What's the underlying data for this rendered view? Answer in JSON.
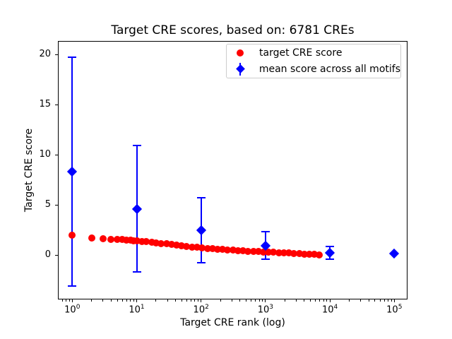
{
  "title": "Target CRE scores, based on: 6781 CREs",
  "axes": {
    "xlabel": "Target CRE rank (log)",
    "ylabel": "Target CRE score",
    "x_ticks": [
      {
        "value": 1,
        "base": "10",
        "exp": "0"
      },
      {
        "value": 10,
        "base": "10",
        "exp": "1"
      },
      {
        "value": 100,
        "base": "10",
        "exp": "2"
      },
      {
        "value": 1000,
        "base": "10",
        "exp": "3"
      },
      {
        "value": 10000,
        "base": "10",
        "exp": "4"
      },
      {
        "value": 100000,
        "base": "10",
        "exp": "5"
      }
    ],
    "y_ticks": [
      {
        "value": 0,
        "label": "0"
      },
      {
        "value": 5,
        "label": "5"
      },
      {
        "value": 10,
        "label": "10"
      },
      {
        "value": 15,
        "label": "15"
      },
      {
        "value": 20,
        "label": "20"
      }
    ]
  },
  "legend": {
    "items": [
      {
        "label": "target CRE score",
        "marker": "circle",
        "color": "#ff0000"
      },
      {
        "label": "mean score across all motifs",
        "marker": "diamond",
        "color": "#0000ff"
      }
    ]
  },
  "colors": {
    "target_series": "#ff0000",
    "mean_series": "#0000ff",
    "axis": "#000000",
    "legend_border": "#cccccc"
  },
  "chart_data": {
    "type": "scatter",
    "title": "Target CRE scores, based on: 6781 CREs",
    "xlabel": "Target CRE rank (log)",
    "ylabel": "Target CRE score",
    "x_scale": "log",
    "xlim": [
      0.62,
      162000
    ],
    "ylim": [
      -4.45,
      21.3
    ],
    "grid": false,
    "legend_position": "upper right",
    "series": [
      {
        "name": "target CRE score",
        "marker": "circle",
        "color": "#ff0000",
        "x": [
          1,
          2,
          3,
          4,
          5,
          6,
          7,
          8,
          9,
          10,
          12,
          14,
          17,
          20,
          24,
          29,
          35,
          42,
          50,
          60,
          72,
          87,
          104,
          125,
          150,
          180,
          216,
          259,
          311,
          373,
          448,
          538,
          645,
          774,
          929,
          1115,
          1338,
          1606,
          1927,
          2312,
          2774,
          3329,
          3995,
          4794,
          5753,
          6781
        ],
        "y": [
          1.95,
          1.68,
          1.6,
          1.57,
          1.55,
          1.52,
          1.5,
          1.47,
          1.44,
          1.42,
          1.37,
          1.32,
          1.27,
          1.22,
          1.16,
          1.1,
          1.04,
          0.98,
          0.92,
          0.86,
          0.8,
          0.74,
          0.69,
          0.65,
          0.61,
          0.57,
          0.54,
          0.5,
          0.47,
          0.43,
          0.4,
          0.37,
          0.35,
          0.33,
          0.31,
          0.29,
          0.26,
          0.23,
          0.21,
          0.18,
          0.15,
          0.13,
          0.1,
          0.08,
          0.05,
          0.03
        ]
      },
      {
        "name": "mean score across all motifs",
        "marker": "diamond",
        "color": "#0000ff",
        "x": [
          1,
          10,
          100,
          1000,
          10000,
          100000
        ],
        "y": [
          8.3,
          4.6,
          2.45,
          0.95,
          0.2,
          0.12
        ],
        "yerr": [
          11.4,
          6.3,
          3.25,
          1.4,
          0.62,
          0
        ]
      }
    ]
  }
}
